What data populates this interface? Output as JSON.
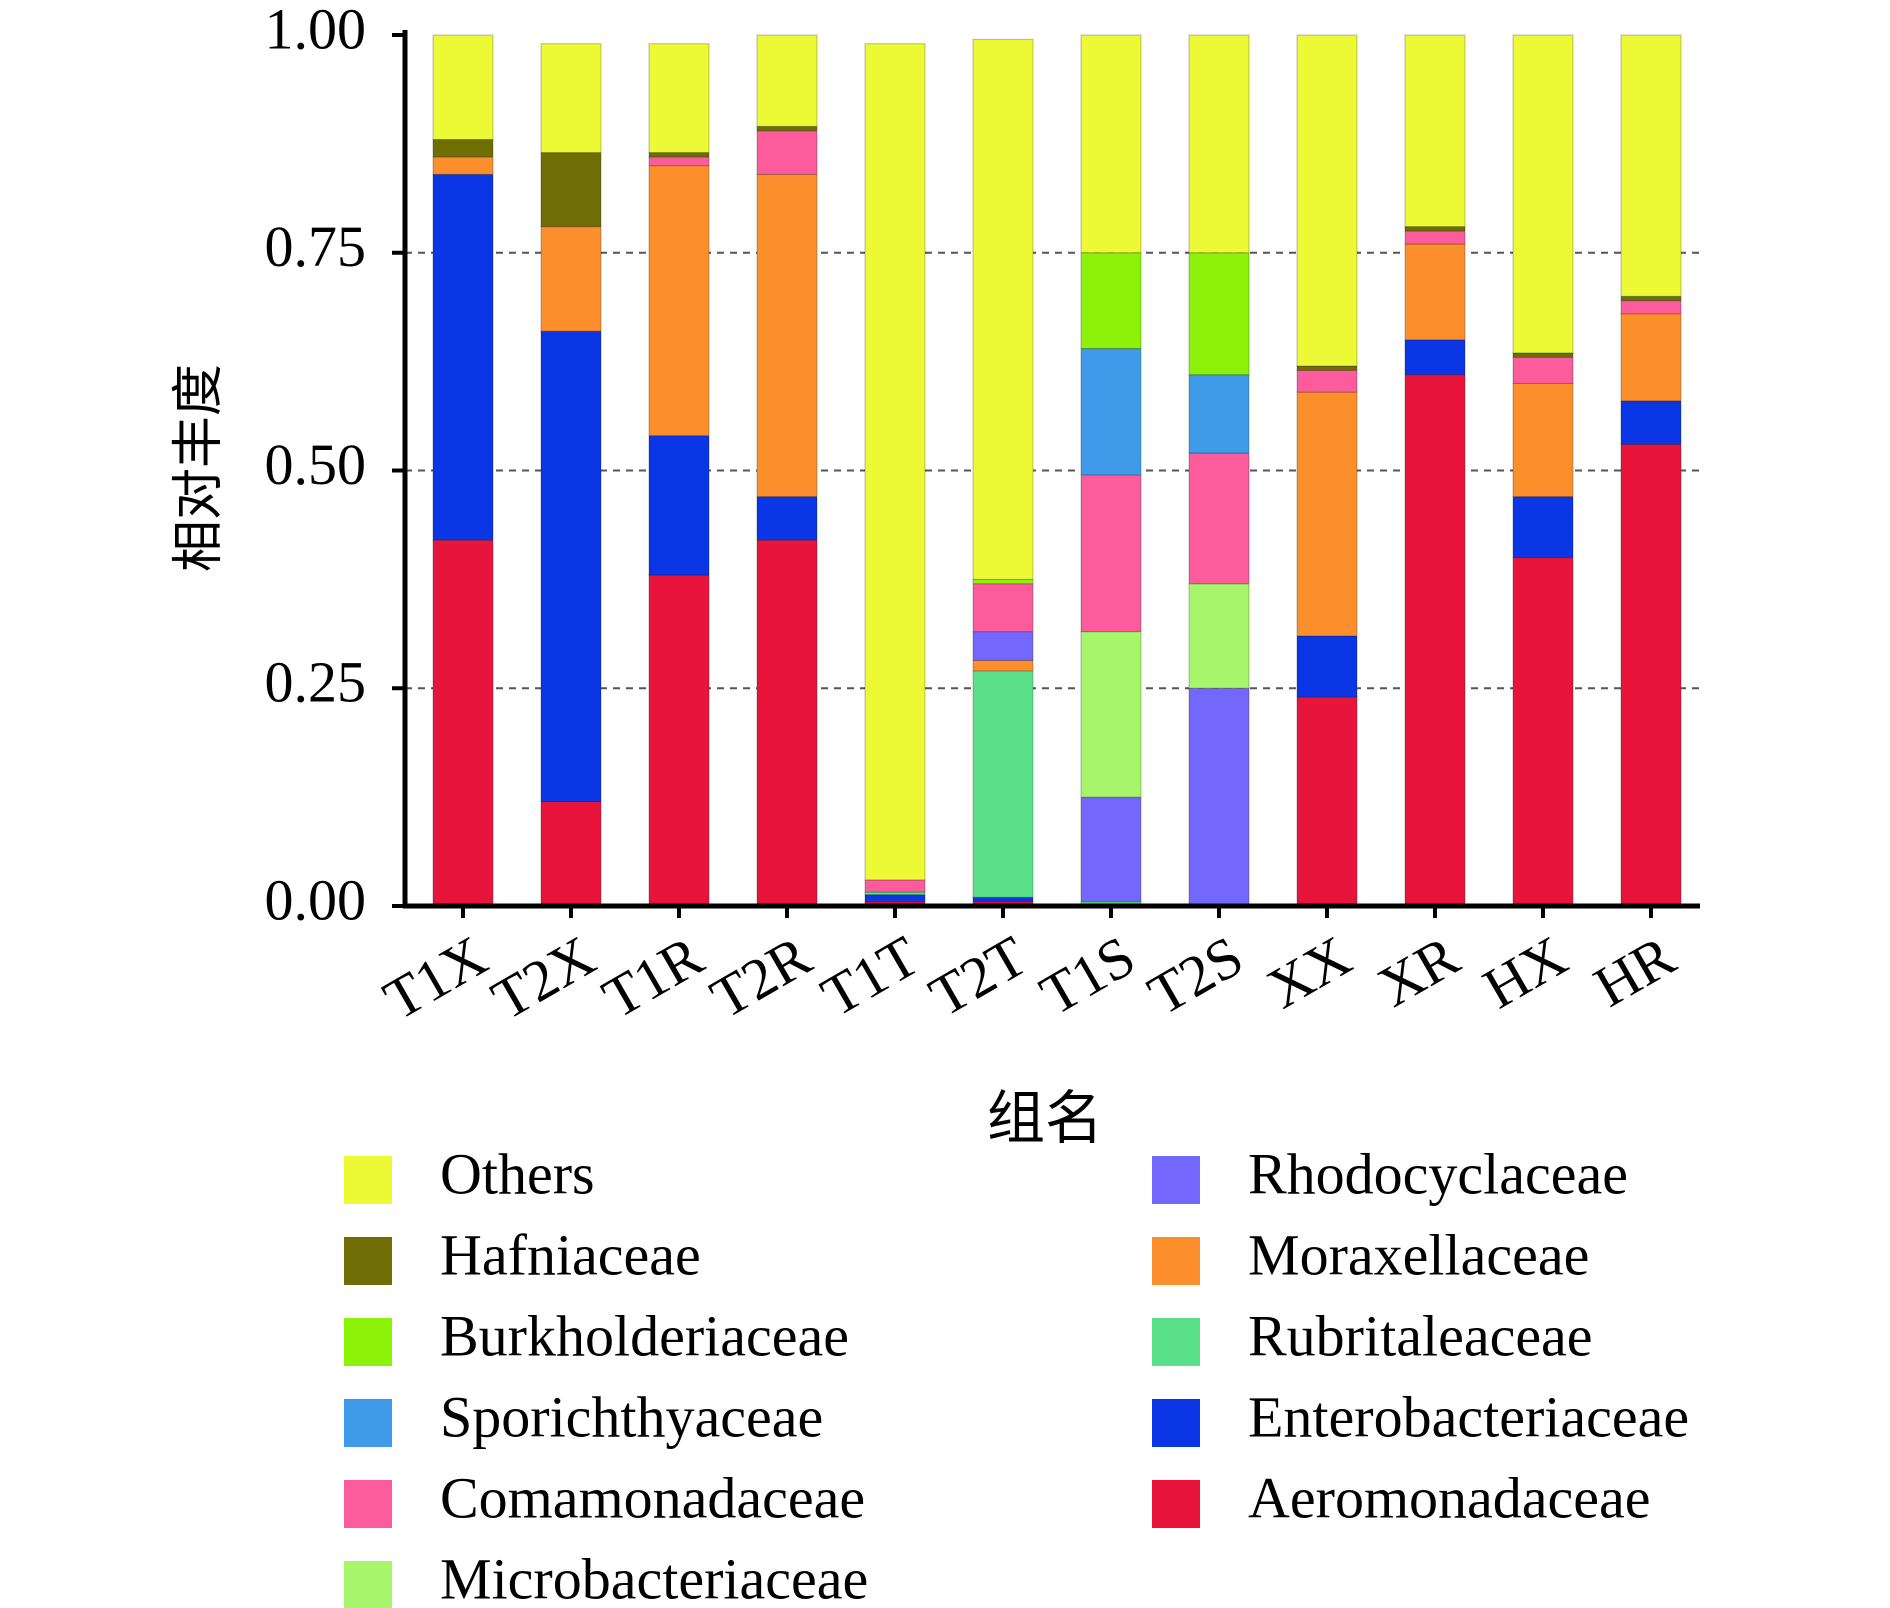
{
  "chart_data": {
    "type": "bar",
    "stacked": true,
    "xlabel": "组名",
    "ylabel": "相对丰度",
    "ylim": [
      0,
      1
    ],
    "yticks": [
      "0.00",
      "0.25",
      "0.50",
      "0.75",
      "1.00"
    ],
    "grid": "dashed horizontal lines at 0.25, 0.50, 0.75",
    "legend_position": "bottom, two columns",
    "categories": [
      "T1X",
      "T2X",
      "T1R",
      "T2R",
      "T1T",
      "T2T",
      "T1S",
      "T2S",
      "XX",
      "XR",
      "HX",
      "HR"
    ],
    "series": [
      {
        "name": "Aeromonadaceae",
        "color": "#e8143c",
        "values": [
          0.42,
          0.12,
          0.38,
          0.42,
          0.005,
          0.005,
          0.0,
          0.0,
          0.24,
          0.61,
          0.4,
          0.53
        ]
      },
      {
        "name": "Enterobacteriaceae",
        "color": "#0b36e6",
        "values": [
          0.42,
          0.54,
          0.16,
          0.05,
          0.008,
          0.005,
          0.0,
          0.0,
          0.07,
          0.04,
          0.07,
          0.05
        ]
      },
      {
        "name": "Rubritaleaceae",
        "color": "#5be08a",
        "values": [
          0.0,
          0.0,
          0.0,
          0.0,
          0.003,
          0.26,
          0.005,
          0.0,
          0.0,
          0.0,
          0.0,
          0.0
        ]
      },
      {
        "name": "Moraxellaceae",
        "color": "#fd8e2c",
        "values": [
          0.02,
          0.12,
          0.31,
          0.37,
          0.0,
          0.012,
          0.0,
          0.0,
          0.28,
          0.11,
          0.13,
          0.1
        ]
      },
      {
        "name": "Rhodocyclaceae",
        "color": "#7367fc",
        "values": [
          0.0,
          0.0,
          0.0,
          0.0,
          0.0,
          0.033,
          0.12,
          0.25,
          0.0,
          0.0,
          0.0,
          0.0
        ]
      },
      {
        "name": "Microbacteriaceae",
        "color": "#a7f56b",
        "values": [
          0.0,
          0.0,
          0.0,
          0.0,
          0.0,
          0.0,
          0.19,
          0.12,
          0.0,
          0.0,
          0.0,
          0.0
        ]
      },
      {
        "name": "Comamonadaceae",
        "color": "#fc5c9c",
        "values": [
          0.0,
          0.0,
          0.01,
          0.05,
          0.014,
          0.055,
          0.18,
          0.15,
          0.025,
          0.015,
          0.03,
          0.015
        ]
      },
      {
        "name": "Sporichthyaceae",
        "color": "#3f9be9",
        "values": [
          0.0,
          0.0,
          0.0,
          0.0,
          0.0,
          0.0,
          0.145,
          0.09,
          0.0,
          0.0,
          0.0,
          0.0
        ]
      },
      {
        "name": "Burkholderiaceae",
        "color": "#8cf20a",
        "values": [
          0.0,
          0.0,
          0.0,
          0.0,
          0.0,
          0.005,
          0.11,
          0.14,
          0.0,
          0.0,
          0.0,
          0.0
        ]
      },
      {
        "name": "Hafniaceae",
        "color": "#6e6e04",
        "values": [
          0.02,
          0.085,
          0.005,
          0.005,
          0.0,
          0.0,
          0.0,
          0.0,
          0.005,
          0.005,
          0.005,
          0.005
        ]
      },
      {
        "name": "Others",
        "color": "#ebfa35",
        "values": [
          0.12,
          0.125,
          0.125,
          0.105,
          0.96,
          0.62,
          0.25,
          0.255,
          0.38,
          0.22,
          0.365,
          0.3
        ]
      }
    ],
    "legend": {
      "left": [
        "Others",
        "Hafniaceae",
        "Burkholderiaceae",
        "Sporichthyaceae",
        "Comamonadaceae",
        "Microbacteriaceae"
      ],
      "right": [
        "Rhodocyclaceae",
        "Moraxellaceae",
        "Rubritaleaceae",
        "Enterobacteriaceae",
        "Aeromonadaceae"
      ]
    }
  }
}
